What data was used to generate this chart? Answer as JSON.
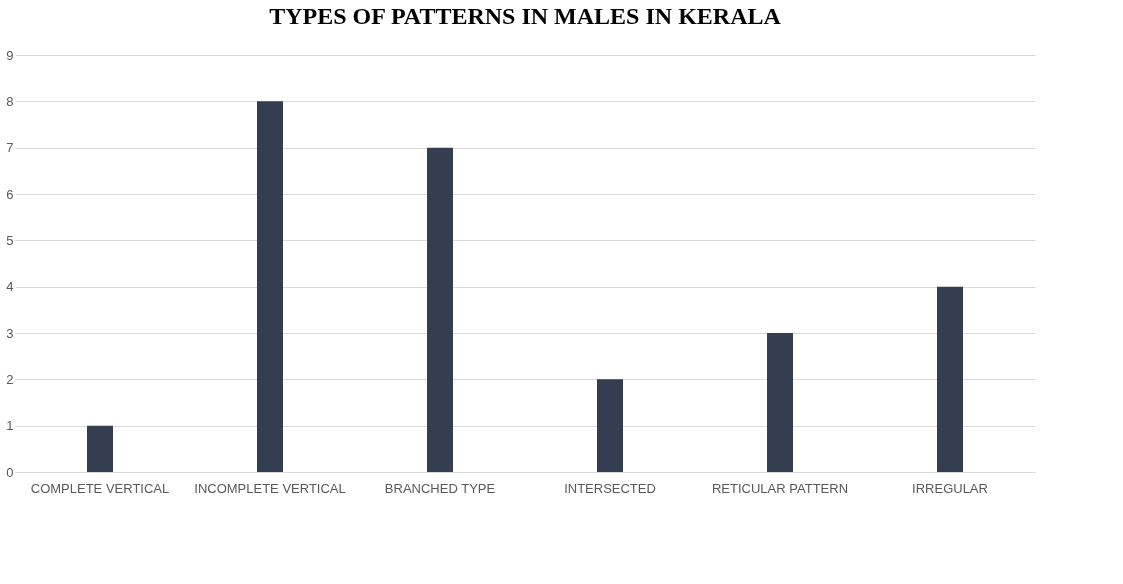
{
  "chart_data": {
    "type": "bar",
    "title": "TYPES OF PATTERNS IN MALES IN KERALA",
    "categories": [
      "COMPLETE VERTICAL",
      "INCOMPLETE VERTICAL",
      "BRANCHED TYPE",
      "INTERSECTED",
      "RETICULAR PATTERN",
      "IRREGULAR"
    ],
    "values": [
      1,
      8,
      7,
      2,
      3,
      4
    ],
    "color": "#333f50",
    "ylim": [
      0,
      9
    ],
    "yticks": [
      0,
      1,
      2,
      3,
      4,
      5,
      6,
      7,
      8,
      9
    ],
    "grid": "y"
  }
}
